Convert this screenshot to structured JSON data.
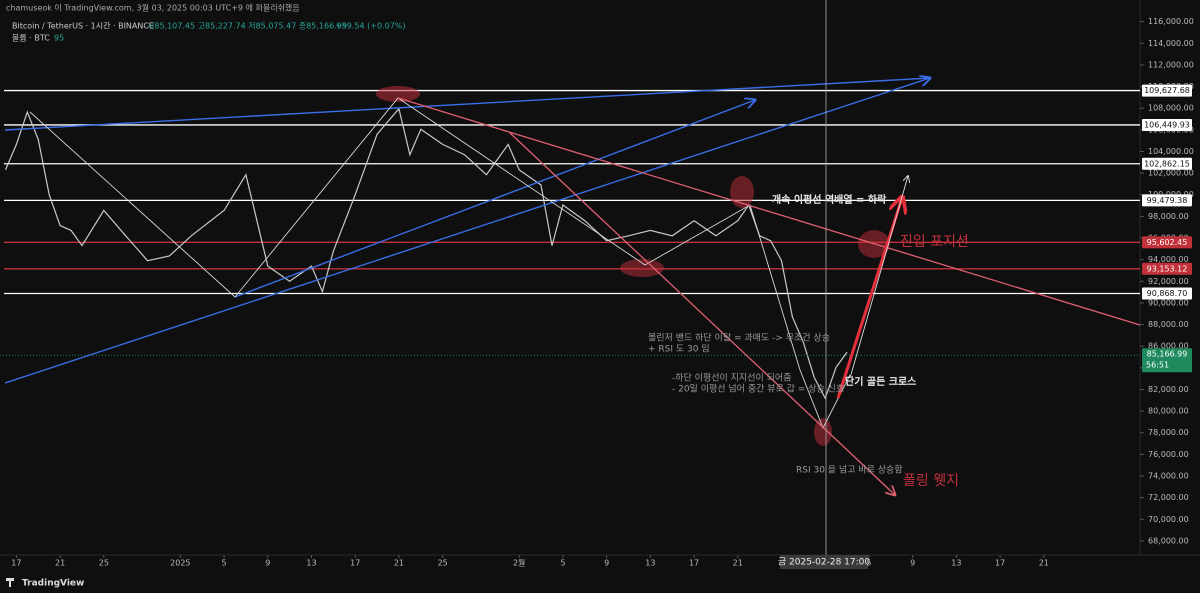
{
  "header": {
    "author": "chamuseok 이 TradingView.com, 3월 03, 2025 00:03 UTC+9 에 퍼블리쉬했음",
    "symbol": "Bitcoin / TetherUS · 1시간 · BINANCE",
    "ohlc": "시85,107.45 고85,227.74 저85,075.47 종85,166.99",
    "change": "+59.54 (+0.07%)",
    "volume_label": "볼륨 · BTC",
    "volume_value": "95"
  },
  "footer": {
    "brand": "TradingView"
  },
  "annotations": {
    "trend": "개속 이평선 역배열 = 하락",
    "entry": "진입 포지션",
    "bollinger": "볼린저 밴드 하단 이탈 = 과매도 -> 무조건 상승",
    "rsi": "+ RSI 도 30 임",
    "support": "-하단 이평선이 지지선이 되어줌",
    "ma20": "- 20일 이평선 넘어 중간 뷰로 갑 = 상승 신호",
    "golden": "단기 골든 크로스",
    "rsi_up": "RSI 30 을 넘고 바로 상승함",
    "wedge": "폴링 웻지",
    "crosshair": "금 2025-02-28  17:00"
  },
  "chart_data": {
    "type": "line",
    "x": [
      -1,
      0,
      1,
      2,
      3,
      4,
      5,
      6,
      8,
      10,
      12,
      14,
      16,
      19,
      21,
      23,
      25,
      27,
      28,
      29,
      31,
      33,
      35,
      36,
      37,
      39,
      41,
      43,
      45,
      46,
      48,
      49,
      50,
      52,
      54,
      56,
      58,
      60,
      62,
      64,
      66,
      67,
      68,
      69,
      70,
      71,
      72,
      73,
      74,
      75,
      76
    ],
    "series": [
      {
        "name": "Bitcoin / TetherUS",
        "color": "#c9c9c9",
        "values": [
          102300,
          104650,
          107650,
          105100,
          100000,
          97150,
          96700,
          95300,
          98550,
          96200,
          93900,
          94350,
          96200,
          98550,
          101850,
          93400,
          92000,
          93400,
          91050,
          94800,
          100000,
          105600,
          107950,
          103700,
          106050,
          104650,
          103700,
          101850,
          104650,
          102300,
          100900,
          95300,
          99050,
          97600,
          95750,
          96200,
          96700,
          96200,
          97600,
          96200,
          97600,
          99050,
          96200,
          95750,
          93900,
          88700,
          86350,
          83100,
          81200,
          84050,
          85450
        ]
      }
    ],
    "xlim": [
      -1.5,
      102.8
    ],
    "ylim": [
      66700,
      118000
    ],
    "xticks": [
      {
        "value": 0,
        "label": "17"
      },
      {
        "value": 4,
        "label": "21"
      },
      {
        "value": 8,
        "label": "25"
      },
      {
        "value": 15,
        "label": "2025"
      },
      {
        "value": 19,
        "label": "5"
      },
      {
        "value": 23,
        "label": "9"
      },
      {
        "value": 27,
        "label": "13"
      },
      {
        "value": 31,
        "label": "17"
      },
      {
        "value": 35,
        "label": "21"
      },
      {
        "value": 39,
        "label": "25"
      },
      {
        "value": 46,
        "label": "2월"
      },
      {
        "value": 50,
        "label": "5"
      },
      {
        "value": 54,
        "label": "9"
      },
      {
        "value": 58,
        "label": "13"
      },
      {
        "value": 62,
        "label": "17"
      },
      {
        "value": 66,
        "label": "21"
      },
      {
        "value": 78,
        "label": "5"
      },
      {
        "value": 82,
        "label": "9"
      },
      {
        "value": 86,
        "label": "13"
      },
      {
        "value": 90,
        "label": "17"
      },
      {
        "value": 94,
        "label": "21"
      }
    ],
    "yticks": [
      {
        "value": 68000,
        "label": "68,000.00"
      },
      {
        "value": 70000,
        "label": "70,000.00"
      },
      {
        "value": 72000,
        "label": "72,000.00"
      },
      {
        "value": 74000,
        "label": "74,000.00"
      },
      {
        "value": 76000,
        "label": "76,000.00"
      },
      {
        "value": 78000,
        "label": "78,000.00"
      },
      {
        "value": 80000,
        "label": "80,000.00"
      },
      {
        "value": 82000,
        "label": "82,000.00"
      },
      {
        "value": 84000,
        "label": "84,000.00"
      },
      {
        "value": 86000,
        "label": "86,000.00"
      },
      {
        "value": 88000,
        "label": "88,000.00"
      },
      {
        "value": 90000,
        "label": "90,000.00"
      },
      {
        "value": 92000,
        "label": "92,000.00"
      },
      {
        "value": 94000,
        "label": "94,000.00"
      },
      {
        "value": 96000,
        "label": "96,000.00"
      },
      {
        "value": 98000,
        "label": "98,000.00"
      },
      {
        "value": 100000,
        "label": "100,000.00"
      },
      {
        "value": 102000,
        "label": "102,000.00"
      },
      {
        "value": 104000,
        "label": "104,000.00"
      },
      {
        "value": 106000,
        "label": "106,000.00"
      },
      {
        "value": 108000,
        "label": "108,000.00"
      },
      {
        "value": 110000,
        "label": "110,000.00"
      },
      {
        "value": 112000,
        "label": "112,000.00"
      },
      {
        "value": 114000,
        "label": "114,000.00"
      },
      {
        "value": 116000,
        "label": "116,000.00"
      }
    ],
    "levels": [
      {
        "value": 109627.68,
        "label": "109,627.68",
        "color": "#ffffff"
      },
      {
        "value": 106449.93,
        "label": "106,449.93",
        "color": "#ffffff"
      },
      {
        "value": 102862.15,
        "label": "102,862.15",
        "color": "#ffffff"
      },
      {
        "value": 99479.38,
        "label": "99,479.38",
        "color": "#ffffff"
      },
      {
        "value": 95602.45,
        "label": "95,602.45",
        "color": "#c2303a"
      },
      {
        "value": 93153.12,
        "label": "93,153.12",
        "color": "#c2303a"
      },
      {
        "value": 90868.7,
        "label": "90,868.70",
        "color": "#ffffff"
      }
    ],
    "last_price": {
      "value": 85166.99,
      "label": "85,166.99",
      "countdown": "56:51",
      "color": "#1e8a5e"
    }
  }
}
